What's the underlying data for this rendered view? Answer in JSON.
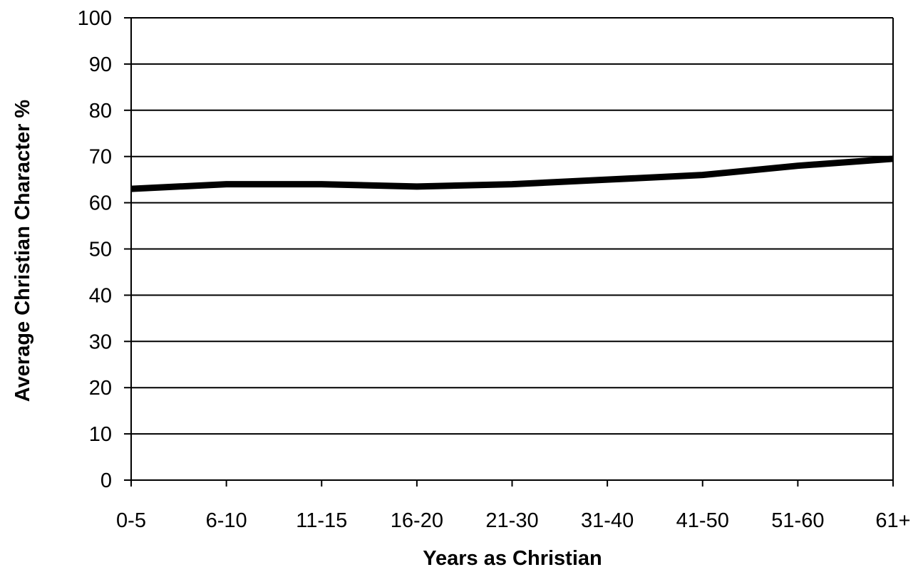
{
  "chart_data": {
    "type": "line",
    "title": "",
    "xlabel": "Years as Christian",
    "ylabel": "Average Christian Character %",
    "categories": [
      "0-5",
      "6-10",
      "11-15",
      "16-20",
      "21-30",
      "31-40",
      "41-50",
      "51-60",
      "61+"
    ],
    "series": [
      {
        "values": [
          63,
          64,
          64,
          63.5,
          64,
          65,
          66,
          68,
          69.5
        ]
      }
    ],
    "ylim": [
      0,
      100
    ],
    "yticks": [
      0,
      10,
      20,
      30,
      40,
      50,
      60,
      70,
      80,
      90,
      100
    ],
    "grid": "horizontal",
    "line_color": "#000000"
  }
}
